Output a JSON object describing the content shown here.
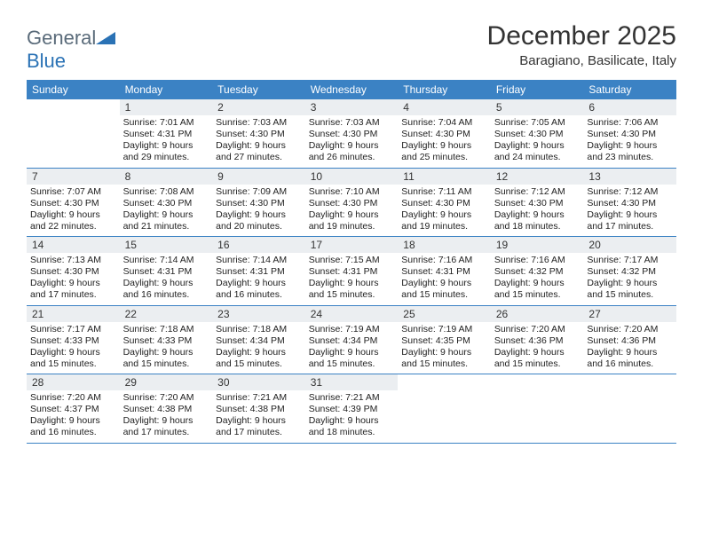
{
  "brand": {
    "name_part1": "General",
    "name_part2": "Blue"
  },
  "title": "December 2025",
  "location": "Baragiano, Basilicate, Italy",
  "colors": {
    "header_bg": "#3b82c4",
    "header_text": "#ffffff",
    "daynum_bg": "#ebeef1",
    "border": "#3b82c4",
    "text": "#333333",
    "logo_gray": "#5a6b7a",
    "logo_blue": "#2a72b5"
  },
  "weekdays": [
    "Sunday",
    "Monday",
    "Tuesday",
    "Wednesday",
    "Thursday",
    "Friday",
    "Saturday"
  ],
  "weeks": [
    [
      null,
      {
        "n": "1",
        "sr": "7:01 AM",
        "ss": "4:31 PM",
        "dl": "9 hours and 29 minutes."
      },
      {
        "n": "2",
        "sr": "7:03 AM",
        "ss": "4:30 PM",
        "dl": "9 hours and 27 minutes."
      },
      {
        "n": "3",
        "sr": "7:03 AM",
        "ss": "4:30 PM",
        "dl": "9 hours and 26 minutes."
      },
      {
        "n": "4",
        "sr": "7:04 AM",
        "ss": "4:30 PM",
        "dl": "9 hours and 25 minutes."
      },
      {
        "n": "5",
        "sr": "7:05 AM",
        "ss": "4:30 PM",
        "dl": "9 hours and 24 minutes."
      },
      {
        "n": "6",
        "sr": "7:06 AM",
        "ss": "4:30 PM",
        "dl": "9 hours and 23 minutes."
      }
    ],
    [
      {
        "n": "7",
        "sr": "7:07 AM",
        "ss": "4:30 PM",
        "dl": "9 hours and 22 minutes."
      },
      {
        "n": "8",
        "sr": "7:08 AM",
        "ss": "4:30 PM",
        "dl": "9 hours and 21 minutes."
      },
      {
        "n": "9",
        "sr": "7:09 AM",
        "ss": "4:30 PM",
        "dl": "9 hours and 20 minutes."
      },
      {
        "n": "10",
        "sr": "7:10 AM",
        "ss": "4:30 PM",
        "dl": "9 hours and 19 minutes."
      },
      {
        "n": "11",
        "sr": "7:11 AM",
        "ss": "4:30 PM",
        "dl": "9 hours and 19 minutes."
      },
      {
        "n": "12",
        "sr": "7:12 AM",
        "ss": "4:30 PM",
        "dl": "9 hours and 18 minutes."
      },
      {
        "n": "13",
        "sr": "7:12 AM",
        "ss": "4:30 PM",
        "dl": "9 hours and 17 minutes."
      }
    ],
    [
      {
        "n": "14",
        "sr": "7:13 AM",
        "ss": "4:30 PM",
        "dl": "9 hours and 17 minutes."
      },
      {
        "n": "15",
        "sr": "7:14 AM",
        "ss": "4:31 PM",
        "dl": "9 hours and 16 minutes."
      },
      {
        "n": "16",
        "sr": "7:14 AM",
        "ss": "4:31 PM",
        "dl": "9 hours and 16 minutes."
      },
      {
        "n": "17",
        "sr": "7:15 AM",
        "ss": "4:31 PM",
        "dl": "9 hours and 15 minutes."
      },
      {
        "n": "18",
        "sr": "7:16 AM",
        "ss": "4:31 PM",
        "dl": "9 hours and 15 minutes."
      },
      {
        "n": "19",
        "sr": "7:16 AM",
        "ss": "4:32 PM",
        "dl": "9 hours and 15 minutes."
      },
      {
        "n": "20",
        "sr": "7:17 AM",
        "ss": "4:32 PM",
        "dl": "9 hours and 15 minutes."
      }
    ],
    [
      {
        "n": "21",
        "sr": "7:17 AM",
        "ss": "4:33 PM",
        "dl": "9 hours and 15 minutes."
      },
      {
        "n": "22",
        "sr": "7:18 AM",
        "ss": "4:33 PM",
        "dl": "9 hours and 15 minutes."
      },
      {
        "n": "23",
        "sr": "7:18 AM",
        "ss": "4:34 PM",
        "dl": "9 hours and 15 minutes."
      },
      {
        "n": "24",
        "sr": "7:19 AM",
        "ss": "4:34 PM",
        "dl": "9 hours and 15 minutes."
      },
      {
        "n": "25",
        "sr": "7:19 AM",
        "ss": "4:35 PM",
        "dl": "9 hours and 15 minutes."
      },
      {
        "n": "26",
        "sr": "7:20 AM",
        "ss": "4:36 PM",
        "dl": "9 hours and 15 minutes."
      },
      {
        "n": "27",
        "sr": "7:20 AM",
        "ss": "4:36 PM",
        "dl": "9 hours and 16 minutes."
      }
    ],
    [
      {
        "n": "28",
        "sr": "7:20 AM",
        "ss": "4:37 PM",
        "dl": "9 hours and 16 minutes."
      },
      {
        "n": "29",
        "sr": "7:20 AM",
        "ss": "4:38 PM",
        "dl": "9 hours and 17 minutes."
      },
      {
        "n": "30",
        "sr": "7:21 AM",
        "ss": "4:38 PM",
        "dl": "9 hours and 17 minutes."
      },
      {
        "n": "31",
        "sr": "7:21 AM",
        "ss": "4:39 PM",
        "dl": "9 hours and 18 minutes."
      },
      null,
      null,
      null
    ]
  ],
  "labels": {
    "sunrise": "Sunrise:",
    "sunset": "Sunset:",
    "daylight": "Daylight:"
  }
}
